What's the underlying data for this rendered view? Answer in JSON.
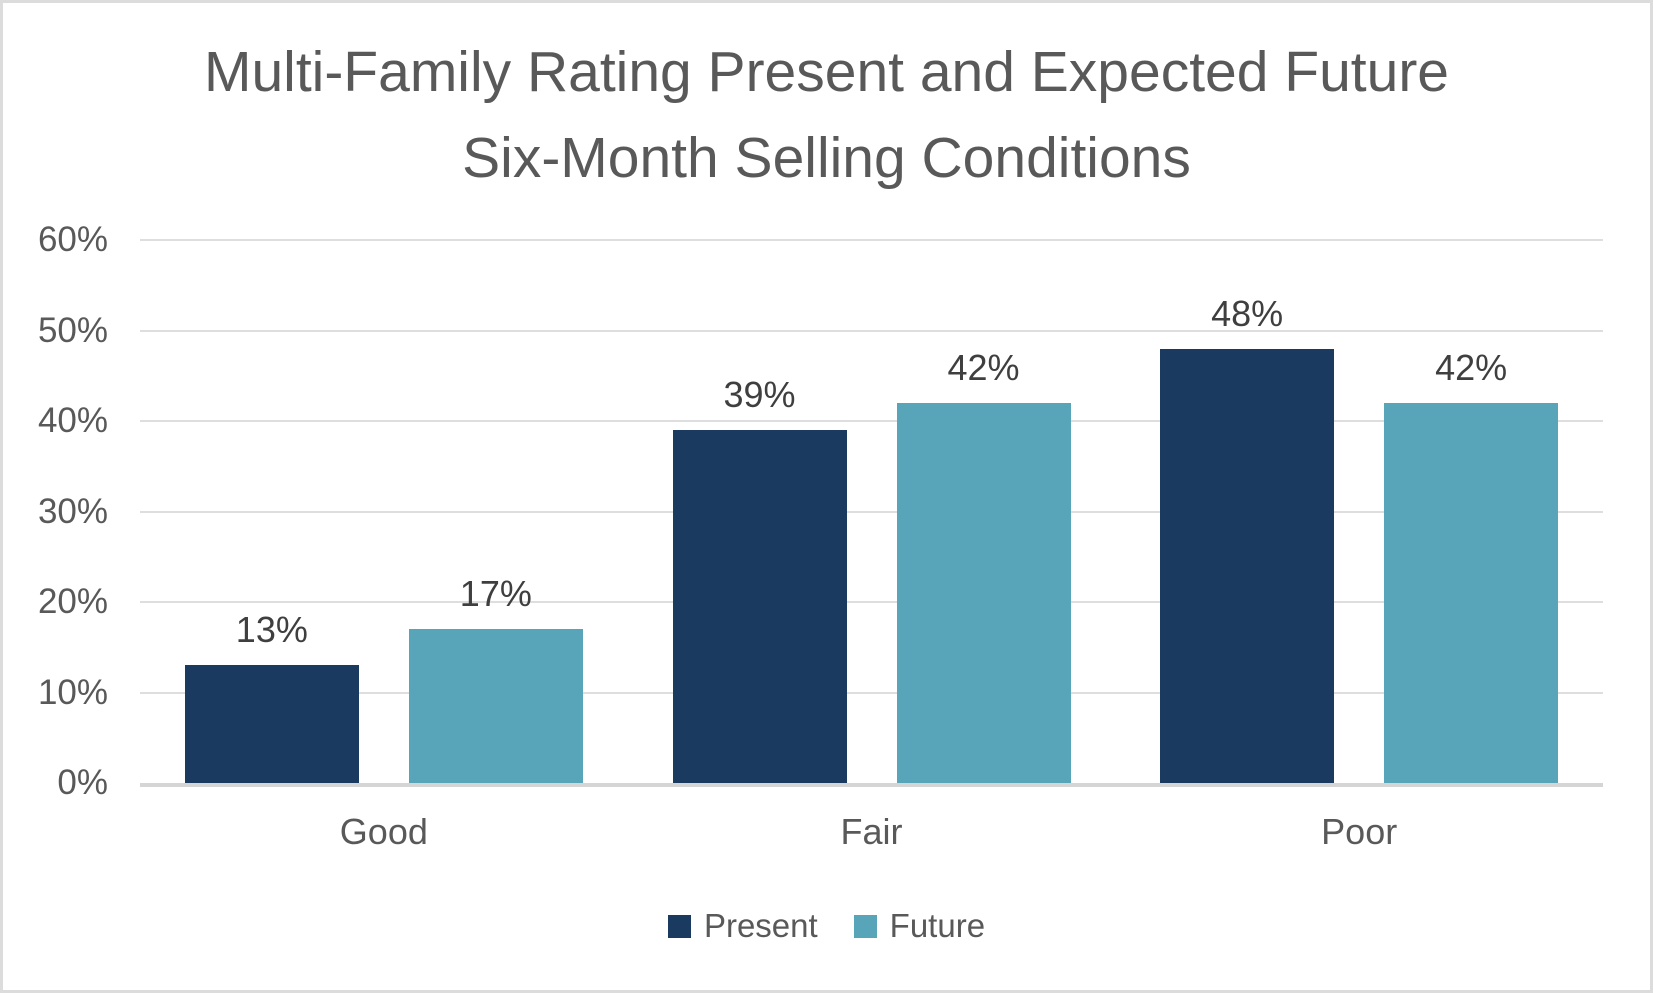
{
  "chart_data": {
    "type": "bar",
    "title": "Multi-Family Rating Present and Expected Future Six-Month Selling Conditions",
    "title_lines": [
      "Multi-Family Rating Present and Expected Future",
      "Six-Month Selling Conditions"
    ],
    "categories": [
      "Good",
      "Fair",
      "Poor"
    ],
    "series": [
      {
        "name": "Present",
        "color": "#1B3A60",
        "values": [
          13,
          39,
          48
        ],
        "data_labels": [
          "13%",
          "39%",
          "48%"
        ]
      },
      {
        "name": "Future",
        "color": "#58A4B8",
        "values": [
          17,
          42,
          42
        ],
        "data_labels": [
          "17%",
          "42%",
          "42%"
        ]
      }
    ],
    "xlabel": "",
    "ylabel": "",
    "ylim": [
      0,
      60
    ],
    "ytick_step": 10,
    "ytick_labels": [
      "0%",
      "10%",
      "20%",
      "30%",
      "40%",
      "50%",
      "60%"
    ],
    "grid": true,
    "legend_position": "bottom"
  },
  "legend": {
    "items": [
      {
        "label": "Present",
        "color": "#1B3A60"
      },
      {
        "label": "Future",
        "color": "#58A4B8"
      }
    ]
  },
  "colors": {
    "title_text": "#595959",
    "axis_text": "#595959",
    "data_label_text": "#3F3F3F",
    "gridline": "#DEDEDE",
    "axis_line": "#D5D5D5",
    "frame_border": "#DCDCDC",
    "background": "#FFFFFF"
  }
}
